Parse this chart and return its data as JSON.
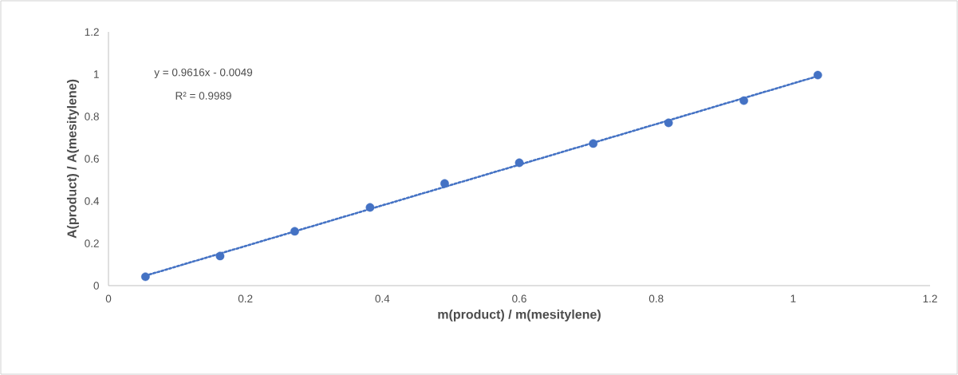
{
  "chart_data": {
    "type": "scatter",
    "xlabel": "m(product) / m(mesitylene)",
    "ylabel": "A(product) / A(mesitylene)",
    "annotations": [
      "y = 0.9616x - 0.0049",
      "R² = 0.9989"
    ],
    "xlim": [
      0,
      1.2
    ],
    "ylim": [
      0,
      1.2
    ],
    "xticks": [
      0,
      0.2,
      0.4,
      0.6,
      0.8,
      1,
      1.2
    ],
    "yticks": [
      0,
      0.2,
      0.4,
      0.6,
      0.8,
      1,
      1.2
    ],
    "series": [
      {
        "type": "scatter",
        "marker": "circle",
        "color": "#4472c4",
        "x": [
          0.054,
          0.163,
          0.272,
          0.382,
          0.491,
          0.6,
          0.708,
          0.818,
          0.928,
          1.036
        ],
        "values": [
          0.042,
          0.14,
          0.257,
          0.37,
          0.483,
          0.581,
          0.672,
          0.77,
          0.875,
          0.996
        ]
      },
      {
        "type": "line",
        "marker": "none",
        "line_style": "dotted",
        "color": "#4472c4",
        "x": [
          0.054,
          1.036
        ],
        "values": [
          0.047,
          0.991
        ]
      }
    ]
  }
}
